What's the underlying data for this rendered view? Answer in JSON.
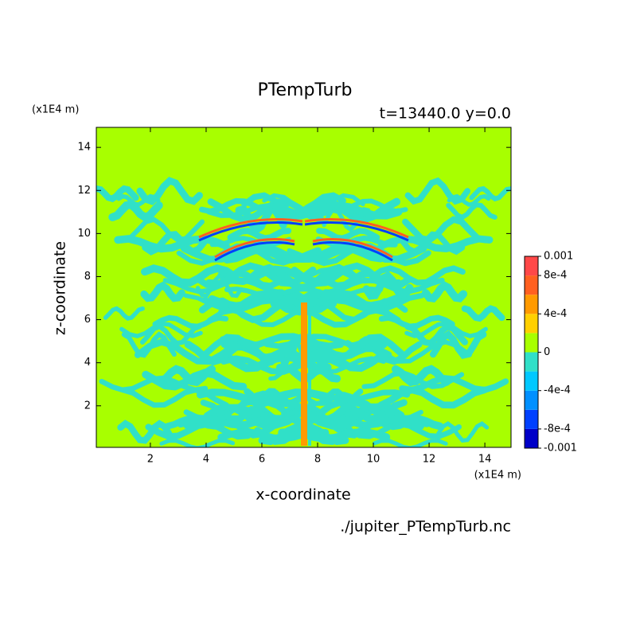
{
  "chart_data": {
    "type": "contour",
    "title": "PTempTurb",
    "subtitle": "t=13440.0 y=0.0",
    "x_label": "x-coordinate",
    "y_label": "z-coordinate",
    "x_unit": "(x1E4 m)",
    "y_unit": "(x1E4 m)",
    "source": "./jupiter_PTempTurb.nc",
    "xlim": [
      0.06,
      14.94
    ],
    "ylim": [
      0.07,
      14.93
    ],
    "xticks": [
      2,
      4,
      6,
      8,
      10,
      12,
      14
    ],
    "yticks": [
      2,
      4,
      6,
      8,
      10,
      12,
      14
    ],
    "colorbar": {
      "levels": [
        -0.001,
        -0.0008,
        -0.0006,
        -0.0004,
        -0.0002,
        0,
        0.0002,
        0.0004,
        0.0006,
        0.0008,
        0.001
      ],
      "colors": [
        "#0000c8",
        "#0040ff",
        "#0090ff",
        "#00c8ff",
        "#30e0c8",
        "#a8ff00",
        "#ffd000",
        "#ff9a00",
        "#ff6020",
        "#ff4848"
      ],
      "ticks": [
        -0.001,
        {
          "value": -0.0008,
          "label": "-8e-4"
        },
        {
          "value": -0.0004,
          "label": "-4e-4"
        },
        0,
        {
          "value": 0.0004,
          "label": "4e-4"
        },
        {
          "value": 0.0008,
          "label": "8e-4"
        },
        0.001
      ]
    }
  }
}
